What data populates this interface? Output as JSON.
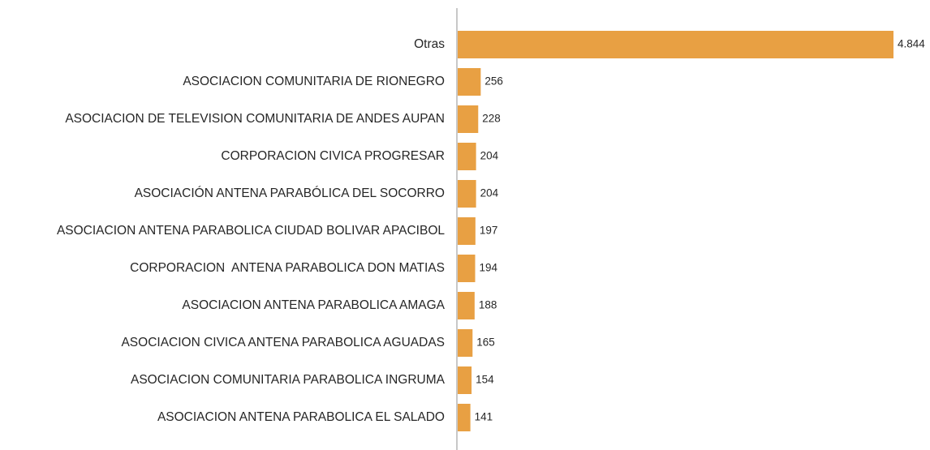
{
  "chart_data": {
    "type": "bar",
    "orientation": "horizontal",
    "categories": [
      "Otras",
      "ASOCIACION COMUNITARIA DE RIONEGRO",
      "ASOCIACION DE TELEVISION COMUNITARIA DE ANDES AUPAN",
      "CORPORACION CIVICA PROGRESAR",
      "ASOCIACIÓN ANTENA PARABÓLICA DEL SOCORRO",
      "ASOCIACION ANTENA PARABOLICA CIUDAD BOLIVAR APACIBOL",
      "CORPORACION  ANTENA PARABOLICA DON MATIAS",
      "ASOCIACION ANTENA PARABOLICA AMAGA",
      "ASOCIACION CIVICA ANTENA PARABOLICA AGUADAS",
      "ASOCIACION COMUNITARIA PARABOLICA INGRUMA",
      "ASOCIACION ANTENA PARABOLICA EL SALADO"
    ],
    "values": [
      4844,
      256,
      228,
      204,
      204,
      197,
      194,
      188,
      165,
      154,
      141
    ],
    "value_labels": [
      "4.844",
      "256",
      "228",
      "204",
      "204",
      "197",
      "194",
      "188",
      "165",
      "154",
      "141"
    ],
    "color": "#e8a043"
  }
}
